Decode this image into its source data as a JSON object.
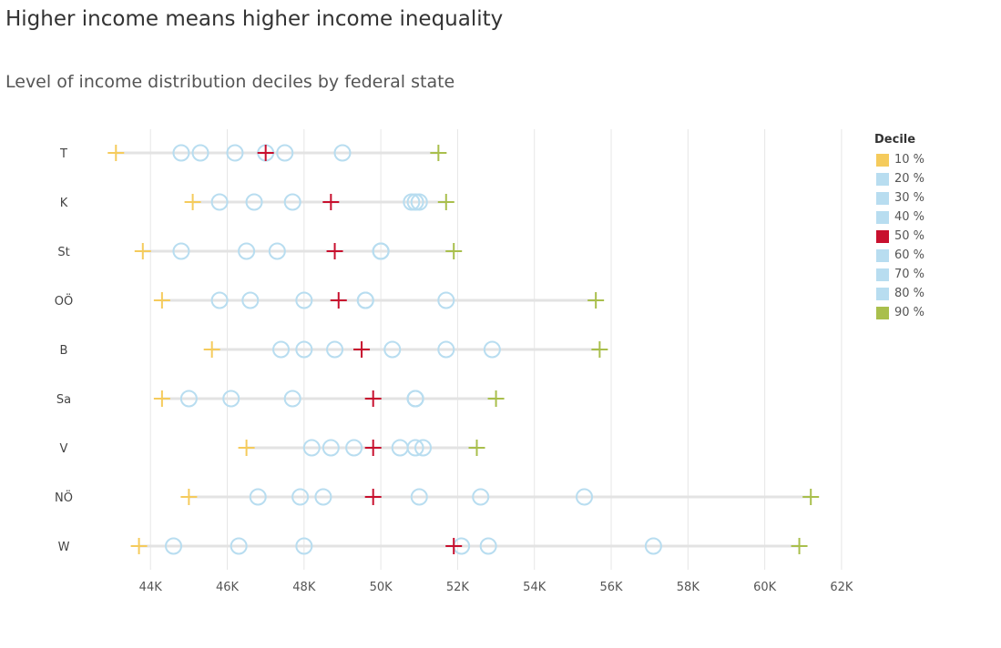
{
  "title": "Higher income means higher income inequality",
  "subtitle": "Level of income distribution deciles by federal state",
  "legend": {
    "title": "Decile",
    "items": [
      {
        "label": "10 %",
        "color": "#f5cb5c"
      },
      {
        "label": "20 %",
        "color": "#b8ddf0"
      },
      {
        "label": "30 %",
        "color": "#b8ddf0"
      },
      {
        "label": "40 %",
        "color": "#b8ddf0"
      },
      {
        "label": "50 %",
        "color": "#c8102e"
      },
      {
        "label": "60 %",
        "color": "#b8ddf0"
      },
      {
        "label": "70 %",
        "color": "#b8ddf0"
      },
      {
        "label": "80 %",
        "color": "#b8ddf0"
      },
      {
        "label": "90 %",
        "color": "#a9bf4c"
      }
    ]
  },
  "chart_data": {
    "type": "scatter",
    "title": "Higher income means higher income inequality",
    "subtitle": "Level of income distribution deciles by federal state",
    "xlabel": "",
    "ylabel": "",
    "xlim": [
      42500,
      62500
    ],
    "x_ticks": [
      44000,
      46000,
      48000,
      50000,
      52000,
      54000,
      56000,
      58000,
      60000,
      62000
    ],
    "x_tick_labels": [
      "44K",
      "46K",
      "48K",
      "50K",
      "52K",
      "54K",
      "56K",
      "58K",
      "60K",
      "62K"
    ],
    "categories": [
      "T",
      "K",
      "St",
      "OÖ",
      "B",
      "Sa",
      "V",
      "NÖ",
      "W"
    ],
    "grid": "vertical",
    "legend_position": "right",
    "series": [
      {
        "name": "10 %",
        "values": [
          43100,
          45100,
          43800,
          44300,
          45600,
          44300,
          46500,
          45000,
          43700
        ]
      },
      {
        "name": "20 %",
        "values": [
          44800,
          45800,
          44800,
          45800,
          47400,
          45000,
          48200,
          46800,
          44600
        ]
      },
      {
        "name": "30 %",
        "values": [
          45300,
          46700,
          46500,
          46600,
          48000,
          46100,
          48700,
          47900,
          46300
        ]
      },
      {
        "name": "40 %",
        "values": [
          46200,
          47700,
          47300,
          48000,
          48800,
          47700,
          49300,
          48500,
          48000
        ]
      },
      {
        "name": "50 %",
        "values": [
          47000,
          48700,
          48800,
          48900,
          49500,
          49800,
          49800,
          49800,
          51900
        ]
      },
      {
        "name": "60 %",
        "values": [
          47500,
          50800,
          50000,
          49600,
          50300,
          50900,
          50500,
          51000,
          52100
        ]
      },
      {
        "name": "70 %",
        "values": [
          49000,
          50900,
          50000,
          49600,
          51700,
          50900,
          50900,
          52600,
          52800
        ]
      },
      {
        "name": "80 %",
        "values": [
          47000,
          51000,
          50000,
          51700,
          52900,
          50900,
          51100,
          55300,
          57100
        ]
      },
      {
        "name": "90 %",
        "values": [
          51500,
          51700,
          51900,
          55600,
          55700,
          53000,
          52500,
          61200,
          60900
        ]
      }
    ]
  }
}
